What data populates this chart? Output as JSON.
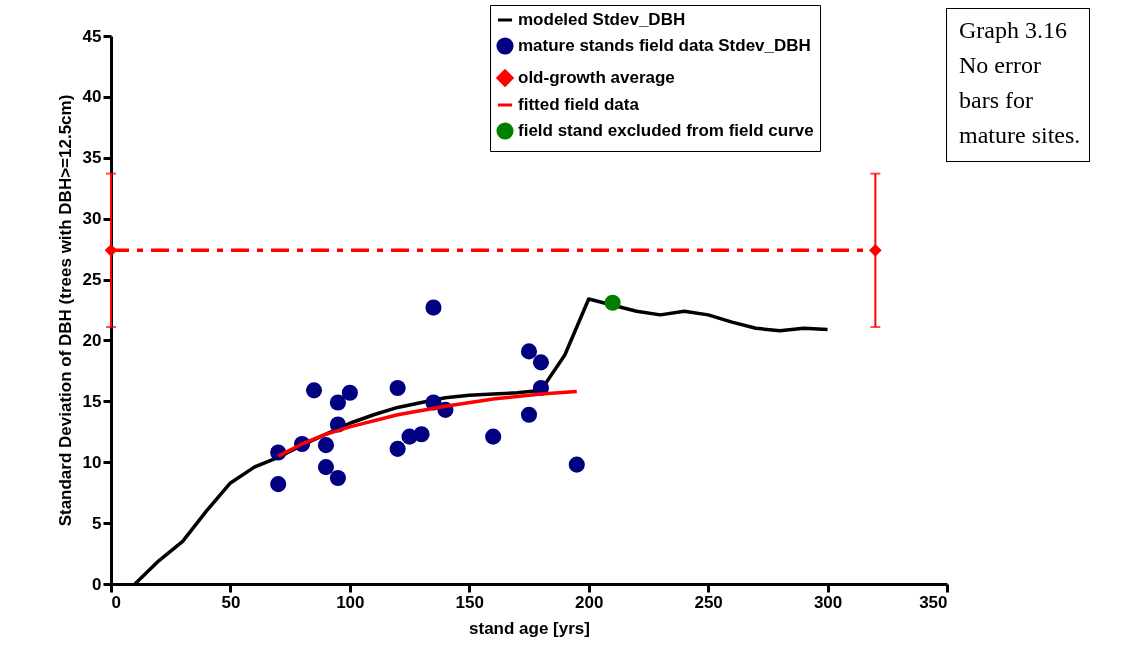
{
  "chart_data": {
    "type": "line",
    "xlabel": "stand age [yrs]",
    "ylabel": "Standard Deviation of DBH (trees with DBH>=12.5cm)",
    "annotations": [
      "Graph 3.16 No error bars for mature sites."
    ],
    "xlim": [
      0,
      350
    ],
    "xticks": [
      0,
      50,
      100,
      150,
      200,
      250,
      300,
      350
    ],
    "ylim": [
      0,
      45
    ],
    "yticks": [
      0,
      5,
      10,
      15,
      20,
      25,
      30,
      35,
      40,
      45
    ],
    "grid": false,
    "legend": "top right",
    "series": [
      {
        "name": "modeled Stdev_DBH",
        "type": "line",
        "color": "#000000",
        "x": [
          10,
          20,
          30,
          40,
          50,
          60,
          70,
          80,
          90,
          100,
          110,
          120,
          130,
          140,
          150,
          160,
          170,
          180,
          190,
          200,
          220,
          230,
          240,
          250,
          260,
          270,
          280,
          290,
          300
        ],
        "values": [
          0,
          1.9,
          3.5,
          6,
          8.3,
          9.6,
          10.4,
          11.4,
          12.3,
          13.2,
          13.9,
          14.5,
          14.9,
          15.3,
          15.5,
          15.6,
          15.7,
          15.9,
          18.8,
          23.4,
          22.4,
          22.1,
          22.4,
          22.1,
          21.5,
          21.0,
          20.8,
          21.0,
          20.9
        ]
      },
      {
        "name": "mature stands field data Stdev_DBH",
        "type": "scatter",
        "marker": "circle",
        "color": "#000080",
        "x": [
          70,
          70,
          80,
          85,
          90,
          90,
          95,
          95,
          95,
          100,
          120,
          120,
          125,
          130,
          135,
          135,
          140,
          160,
          175,
          175,
          180,
          180,
          195
        ],
        "values": [
          10.8,
          8.2,
          11.5,
          15.9,
          11.4,
          9.6,
          14.9,
          13.1,
          8.7,
          15.7,
          16.1,
          11.1,
          12.1,
          12.3,
          22.7,
          14.9,
          14.3,
          12.1,
          19.1,
          13.9,
          18.2,
          16.1,
          9.8
        ]
      },
      {
        "name": "old-growth average",
        "type": "line",
        "marker": "diamond",
        "line_style": "dashed",
        "color": "#ff0000",
        "x": [
          0,
          320
        ],
        "values": [
          27.4,
          27.4
        ],
        "errors": [
          6.3,
          6.3
        ]
      },
      {
        "name": "fitted field data",
        "type": "line",
        "color": "#ff0000",
        "x": [
          70,
          80,
          90,
          100,
          120,
          140,
          160,
          180,
          195
        ],
        "values": [
          10.5,
          11.5,
          12.3,
          12.9,
          13.9,
          14.6,
          15.2,
          15.6,
          15.8
        ]
      },
      {
        "name": "field stand excluded from field curve",
        "type": "scatter",
        "marker": "circle",
        "color": "#008000",
        "x": [
          210
        ],
        "values": [
          23.1
        ]
      }
    ]
  }
}
